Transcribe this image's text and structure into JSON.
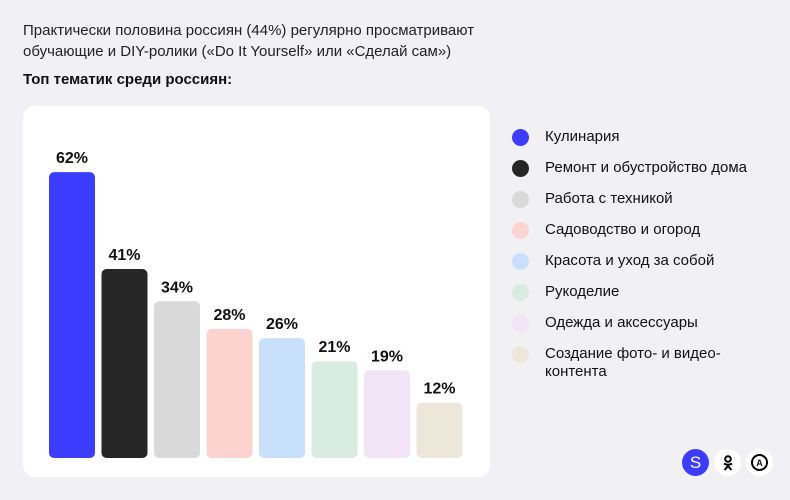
{
  "header": {
    "subtitle_line1": "Практически половина россиян (44%) регулярно просматривают",
    "subtitle_line2": "обучающие и DIY-ролики («Do It Yourself» или «Сделай сам»)",
    "heading": "Топ тематик среди россиян:"
  },
  "chart_data": {
    "type": "bar",
    "categories": [
      "Кулинария",
      "Ремонт и обустройство дома",
      "Работа с техникой",
      "Садоводство и огород",
      "Красота и уход за собой",
      "Рукоделие",
      "Одежда и аксессуары",
      "Создание фото- и видео-контента"
    ],
    "values": [
      62,
      41,
      34,
      28,
      26,
      21,
      19,
      12
    ],
    "data_labels": [
      "62%",
      "41%",
      "34%",
      "28%",
      "26%",
      "21%",
      "19%",
      "12%"
    ],
    "colors": [
      "#3c3cff",
      "#262626",
      "#d9d9d9",
      "#fcd3cf",
      "#c8e0fc",
      "#d8ece2",
      "#f0e4f5",
      "#ede7da"
    ],
    "legend_position": "right",
    "grid": false
  },
  "legend": [
    {
      "label": "Кулинария"
    },
    {
      "label": "Ремонт и обустройство дома"
    },
    {
      "label": "Работа с техникой"
    },
    {
      "label": "Садоводство и огород"
    },
    {
      "label": "Красота и уход за собой"
    },
    {
      "label": "Рукоделие"
    },
    {
      "label": "Одежда и аксессуары"
    },
    {
      "label": "Создание фото- и видео-контента"
    }
  ],
  "logos": {
    "s": "S",
    "ok": "ok-logo",
    "a": "A"
  }
}
